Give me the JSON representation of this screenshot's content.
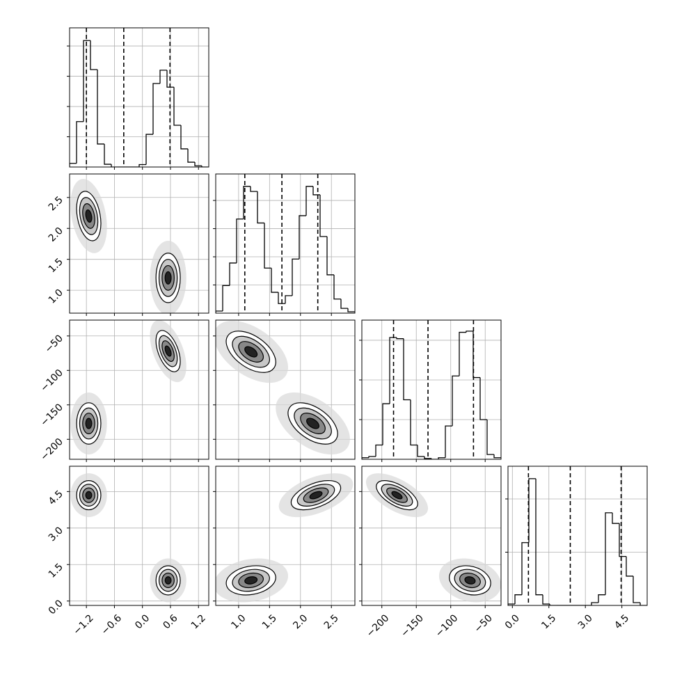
{
  "chart_data": {
    "type": "corner",
    "grid": true,
    "hist_color": "#000000",
    "quantile_color": "#000000",
    "params": [
      {
        "lim": [
          -1.56,
          1.42
        ],
        "ticks": [
          {
            "value": -1.2,
            "label": "−1.2"
          },
          {
            "value": -0.6,
            "label": "−0.6"
          },
          {
            "value": 0,
            "label": "0.0"
          },
          0.6,
          1.2
        ],
        "quantiles": [
          -1.2,
          -0.4,
          0.59
        ],
        "hist": {
          "bins": [
            -1.56,
            -1.411,
            -1.262,
            -1.113,
            -0.964,
            -0.815,
            -0.666,
            -0.517,
            -0.368,
            -0.219,
            -0.07,
            0.079,
            0.228,
            0.377,
            0.526,
            0.675,
            0.824,
            0.973,
            1.122,
            1.271,
            1.42
          ],
          "counts": [
            60,
            750,
            2090,
            1610,
            380,
            45,
            0,
            0,
            0,
            0,
            40,
            540,
            1380,
            1600,
            1320,
            690,
            300,
            80,
            20,
            0
          ],
          "ylim": [
            0,
            2300
          ],
          "yticks": [
            500,
            1000,
            1500,
            2000
          ]
        }
      },
      {
        "lim": [
          0.63,
          2.88
        ],
        "ticks": [
          {
            "value": 1,
            "label": "1.0"
          },
          1.5,
          {
            "value": 2,
            "label": "2.0"
          },
          2.5
        ],
        "quantiles": [
          1.1,
          1.7,
          2.28
        ],
        "hist": {
          "bins": [
            0.63,
            0.7425,
            0.855,
            0.9675,
            1.08,
            1.1925,
            1.305,
            1.4175,
            1.53,
            1.6425,
            1.755,
            1.8675,
            1.98,
            2.0925,
            2.205,
            2.3175,
            2.43,
            2.5425,
            2.655,
            2.7675,
            2.88
          ],
          "counts": [
            37,
            490,
            890,
            1670,
            2250,
            2160,
            1600,
            800,
            370,
            170,
            310,
            960,
            1730,
            2250,
            2100,
            1360,
            680,
            250,
            85,
            25
          ],
          "ylim": [
            0,
            2470
          ],
          "yticks": [
            500,
            1000,
            1500,
            2000
          ]
        }
      },
      {
        "lim": [
          -229,
          -27
        ],
        "ticks": [
          {
            "value": -200,
            "label": "−200"
          },
          {
            "value": -150,
            "label": "−150"
          },
          {
            "value": -100,
            "label": "−100"
          },
          {
            "value": -50,
            "label": "−50"
          }
        ],
        "quantiles": [
          -183,
          -133,
          -67
        ],
        "hist": {
          "bins": [
            -229,
            -218.9,
            -208.8,
            -198.7,
            -188.6,
            -178.5,
            -168.4,
            -158.3,
            -148.2,
            -138.1,
            -128,
            -117.9,
            -107.8,
            -97.7,
            -87.6,
            -77.5,
            -67.4,
            -57.3,
            -47.2,
            -37.1,
            -27
          ],
          "counts": [
            20,
            35,
            180,
            700,
            1535,
            1520,
            750,
            180,
            35,
            10,
            0,
            20,
            420,
            1050,
            1600,
            1615,
            1030,
            500,
            60,
            20
          ],
          "ylim": [
            0,
            1754
          ],
          "yticks": [
            500,
            1000,
            1500
          ]
        }
      },
      {
        "lim": [
          -0.18,
          5.54
        ],
        "ticks": [
          {
            "value": 0,
            "label": "0.0"
          },
          1.5,
          {
            "value": 3,
            "label": "3.0"
          },
          4.5
        ],
        "quantiles": [
          0.66,
          2.38,
          4.47
        ],
        "hist": {
          "bins": [
            -0.18,
            0.106,
            0.392,
            0.678,
            0.964,
            1.25,
            1.536,
            1.822,
            2.108,
            2.394,
            2.68,
            2.966,
            3.252,
            3.538,
            3.824,
            4.11,
            4.396,
            4.682,
            4.968,
            5.254,
            5.54
          ],
          "counts": [
            13,
            100,
            590,
            1190,
            100,
            13,
            0,
            0,
            0,
            0,
            0,
            0,
            26,
            100,
            870,
            770,
            460,
            275,
            26,
            0
          ],
          "ylim": [
            0,
            1307
          ],
          "yticks": [
            500,
            1000
          ]
        }
      }
    ],
    "pairs": [
      {
        "x_param": 0,
        "y_param": 1,
        "clusters": [
          {
            "center": [
              -1.15,
              2.2
            ],
            "sd": [
              0.13,
              0.2
            ],
            "rho": -0.3
          },
          {
            "center": [
              0.55,
              1.2
            ],
            "sd": [
              0.13,
              0.2
            ],
            "rho": 0
          }
        ]
      },
      {
        "x_param": 0,
        "y_param": 2,
        "clusters": [
          {
            "center": [
              -1.15,
              -177
            ],
            "sd": [
              0.13,
              15
            ],
            "rho": 0
          },
          {
            "center": [
              0.55,
              -72
            ],
            "sd": [
              0.13,
              15
            ],
            "rho": -0.5
          }
        ]
      },
      {
        "x_param": 1,
        "y_param": 2,
        "clusters": [
          {
            "center": [
              1.2,
              -73
            ],
            "sd": [
              0.2,
              15
            ],
            "rho": -0.5
          },
          {
            "center": [
              2.2,
              -177
            ],
            "sd": [
              0.2,
              15
            ],
            "rho": -0.5
          }
        ]
      },
      {
        "x_param": 0,
        "y_param": 3,
        "clusters": [
          {
            "center": [
              -1.15,
              4.35
            ],
            "sd": [
              0.13,
              0.3
            ],
            "rho": 0
          },
          {
            "center": [
              0.55,
              0.85
            ],
            "sd": [
              0.13,
              0.3
            ],
            "rho": 0
          }
        ]
      },
      {
        "x_param": 1,
        "y_param": 3,
        "clusters": [
          {
            "center": [
              2.25,
              4.35
            ],
            "sd": [
              0.2,
              0.3
            ],
            "rho": 0.5
          },
          {
            "center": [
              1.2,
              0.85
            ],
            "sd": [
              0.2,
              0.3
            ],
            "rho": 0.2
          }
        ]
      },
      {
        "x_param": 2,
        "y_param": 3,
        "clusters": [
          {
            "center": [
              -178,
              4.35
            ],
            "sd": [
              15,
              0.3
            ],
            "rho": -0.6
          },
          {
            "center": [
              -72,
              0.85
            ],
            "sd": [
              15,
              0.3
            ],
            "rho": -0.2
          }
        ]
      }
    ]
  }
}
